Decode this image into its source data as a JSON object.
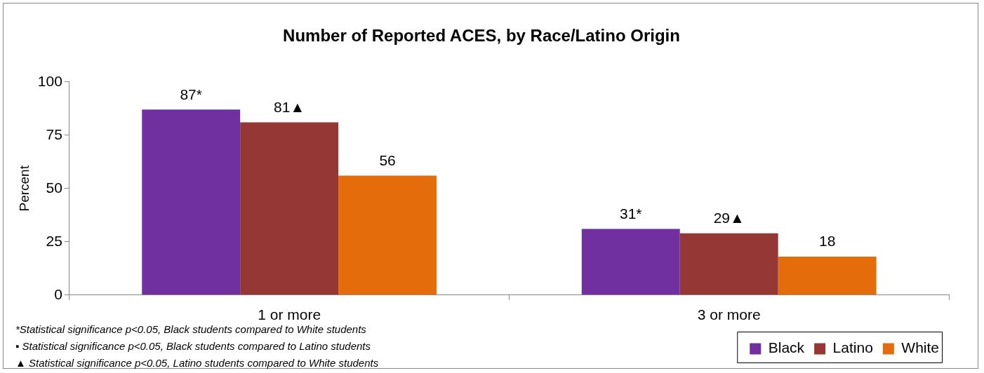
{
  "chart_data": {
    "type": "bar",
    "title": "Number of Reported ACES, by Race/Latino Origin",
    "ylabel": "Percent",
    "categories": [
      "1 or more",
      "3 or more"
    ],
    "series": [
      {
        "name": "Black",
        "color": "#7030a0",
        "values": [
          87,
          31
        ],
        "value_labels": [
          "87*",
          "31*"
        ]
      },
      {
        "name": "Latino",
        "color": "#953735",
        "values": [
          81,
          29
        ],
        "value_labels": [
          "81▲",
          "29▲"
        ]
      },
      {
        "name": "White",
        "color": "#e46c0a",
        "values": [
          56,
          18
        ],
        "value_labels": [
          "56",
          "18"
        ]
      }
    ],
    "ylim": [
      0,
      100
    ],
    "yticks": [
      0,
      25,
      50,
      75,
      100
    ],
    "grid": false,
    "legend": "bottom right",
    "annotations": [
      "*Statistical significance p<0.05, Black students compared to White students",
      "▪ Statistical significance p<0.05, Black students compared to Latino students",
      "▲ Statistical significance p<0.05, Latino students compared to White students"
    ]
  }
}
